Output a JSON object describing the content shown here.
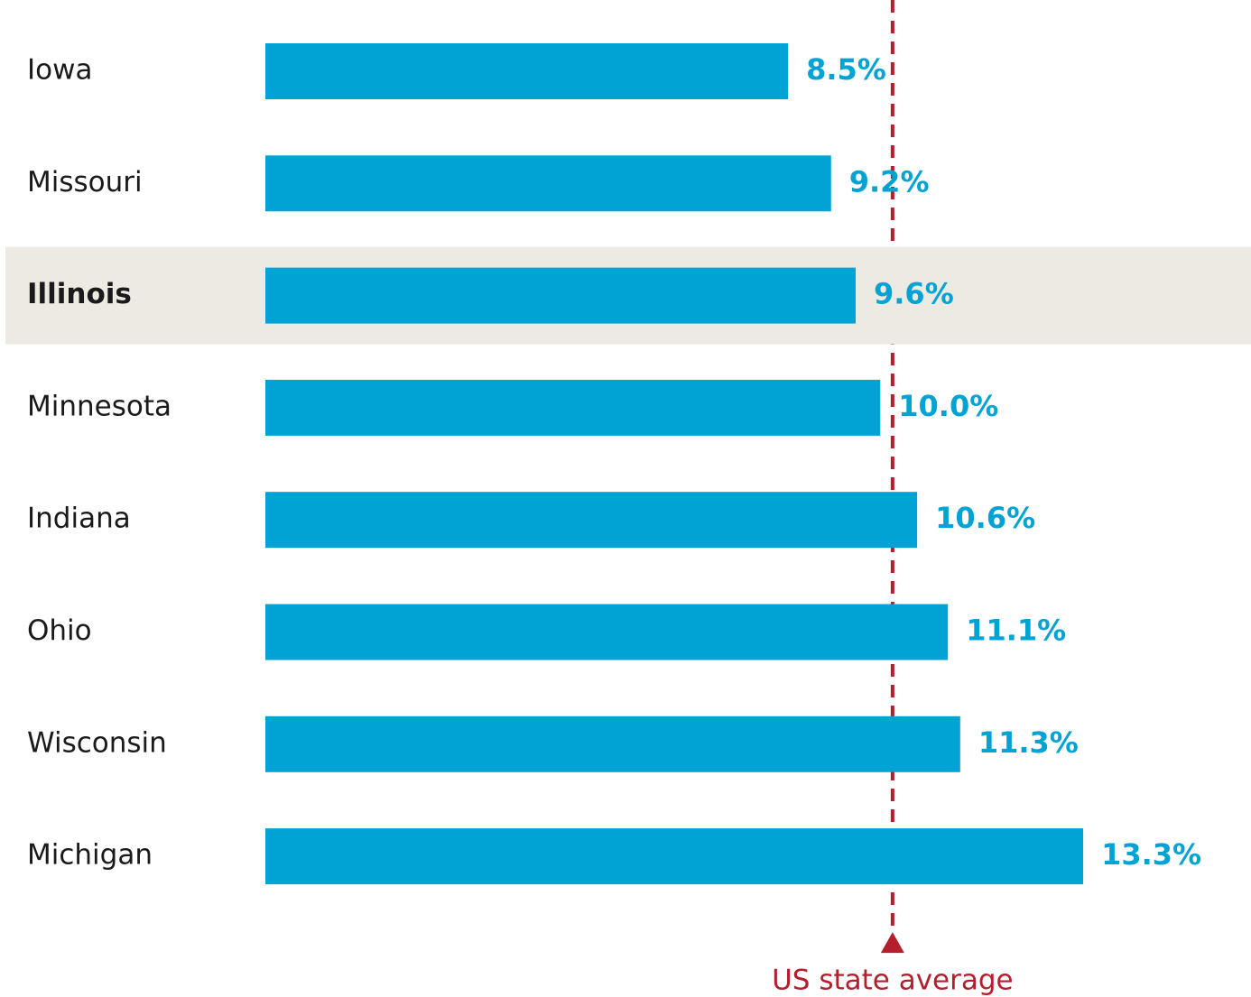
{
  "chart_data": {
    "type": "bar",
    "orientation": "horizontal",
    "categories": [
      "Iowa",
      "Missouri",
      "Illinois",
      "Minnesota",
      "Indiana",
      "Ohio",
      "Wisconsin",
      "Michigan"
    ],
    "values": [
      8.5,
      9.2,
      9.6,
      10.0,
      10.6,
      11.1,
      11.3,
      13.3
    ],
    "value_labels": [
      "8.5%",
      "9.2%",
      "9.6%",
      "10.0%",
      "10.6%",
      "11.1%",
      "11.3%",
      "13.3%"
    ],
    "color": "#00a3d4",
    "xlim": [
      0,
      16
    ],
    "highlight": "Illinois",
    "highlight_color": "#edeae4",
    "reference_line": {
      "value": 10.2,
      "label": "US state average",
      "color": "#b41e2d"
    }
  }
}
